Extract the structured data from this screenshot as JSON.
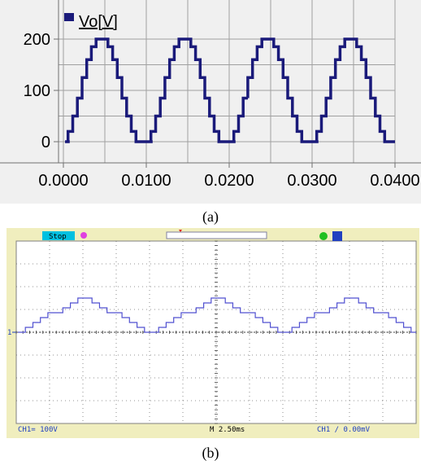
{
  "chart_data": [
    {
      "type": "line",
      "legend": "Vo[V]",
      "x_ticks": [
        "0.0000",
        "0.0100",
        "0.0200",
        "0.0300",
        "0.0400"
      ],
      "y_ticks": [
        "0",
        "100",
        "200"
      ],
      "xlim": [
        0,
        0.04
      ],
      "ylim": [
        0,
        200
      ],
      "grid": true,
      "legend_position": "top-left",
      "series": [
        {
          "color": "#1a1a7a",
          "period": 0.01,
          "steps": [
            0,
            20,
            50,
            85,
            125,
            160,
            185,
            200
          ],
          "cycles": 4
        }
      ]
    },
    {
      "type": "line",
      "status": "Stop",
      "ch1_label": "CH1",
      "ch1_scale": "100V",
      "timebase": "M 2.50ms",
      "trigger": "CH1 ∕ 0.00mV",
      "ground_marker": "1",
      "grid": true,
      "series": [
        {
          "color": "#5050d0",
          "period_ms": 10,
          "amplitude_divs": 1.5,
          "offset_divs": 0,
          "cycles": 4.5
        }
      ]
    }
  ],
  "captions": {
    "a": "(a)",
    "b": "(b)"
  },
  "colors": {
    "panel_bg": "#f0f0f0",
    "scope_bg": "#ffffff",
    "scope_frame": "#f0eebe",
    "scope_trace": "#5050d0",
    "scope_topbar": "#00c0e0"
  }
}
